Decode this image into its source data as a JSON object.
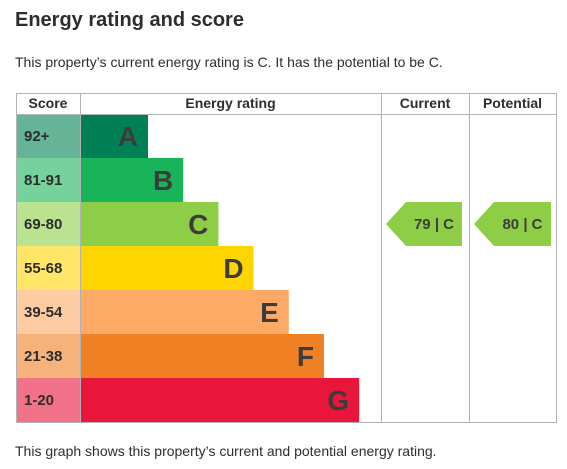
{
  "page": {
    "title": "Energy rating and score",
    "intro": "This property’s current energy rating is C. It has the potential to be C.",
    "footer": "This graph shows this property’s current and potential energy rating."
  },
  "chart_data": {
    "type": "bar",
    "headers": {
      "score": "Score",
      "rating": "Energy rating",
      "current": "Current",
      "potential": "Potential"
    },
    "bands": [
      {
        "score": "92+",
        "letter": "A",
        "color": "#008054",
        "score_bg": "#66b398",
        "length": 1
      },
      {
        "score": "81-91",
        "letter": "B",
        "color": "#19b459",
        "score_bg": "#75d29b",
        "length": 2
      },
      {
        "score": "69-80",
        "letter": "C",
        "color": "#8dce46",
        "score_bg": "#bbe290",
        "length": 3
      },
      {
        "score": "55-68",
        "letter": "D",
        "color": "#ffd500",
        "score_bg": "#ffe666",
        "length": 4
      },
      {
        "score": "39-54",
        "letter": "E",
        "color": "#fcaa65",
        "score_bg": "#fdcca3",
        "length": 5
      },
      {
        "score": "21-38",
        "letter": "F",
        "color": "#ef8023",
        "score_bg": "#f5b37b",
        "length": 6
      },
      {
        "score": "1-20",
        "letter": "G",
        "color": "#e9153b",
        "score_bg": "#f27389",
        "length": 7
      }
    ],
    "current": {
      "score": 79,
      "band": "C",
      "label": "79 | C",
      "color": "#8dce46"
    },
    "potential": {
      "score": 80,
      "band": "C",
      "label": "80 | C",
      "color": "#8dce46"
    }
  }
}
